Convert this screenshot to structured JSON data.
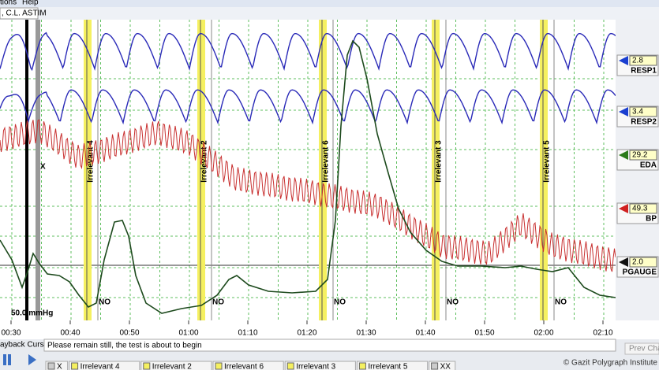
{
  "menu": [
    "tions",
    "Help"
  ],
  "tab": ", C.L. ASTIM",
  "stimulus_marker": "X",
  "scale_label": "50.0 mmHg",
  "questions": [
    {
      "label": "Irrelevant 4",
      "answer": "NO"
    },
    {
      "label": "Irrelevant 2",
      "answer": "NO"
    },
    {
      "label": "Irrelevant 6",
      "answer": "NO"
    },
    {
      "label": "Irrelevant 3",
      "answer": "NO"
    },
    {
      "label": "Irrelevant 5",
      "answer": "NO"
    }
  ],
  "time_labels": [
    "00:30",
    "00:40",
    "00:50",
    "01:00",
    "01:10",
    "01:20",
    "01:30",
    "01:40",
    "01:50",
    "02:00",
    "02:10"
  ],
  "channels": [
    {
      "name": "RESP1",
      "value": "2.8"
    },
    {
      "name": "RESP2",
      "value": "3.4"
    },
    {
      "name": "EDA",
      "value": "29.2"
    },
    {
      "name": "BP",
      "value": "49.3"
    },
    {
      "name": "PGAUGE",
      "value": "2.0"
    }
  ],
  "playback_label": "ayback Cursor",
  "message": "Please remain still, the test is about to begin",
  "prev_button": "Prev Chart",
  "bottom_tabs": [
    "X",
    "Irrelevant 4",
    "Irrelevant 2",
    "Irrelevant 6",
    "Irrelevant 3",
    "Irrelevant 5",
    "XX"
  ],
  "copyright": "© Gazit Polygraph Institute"
}
